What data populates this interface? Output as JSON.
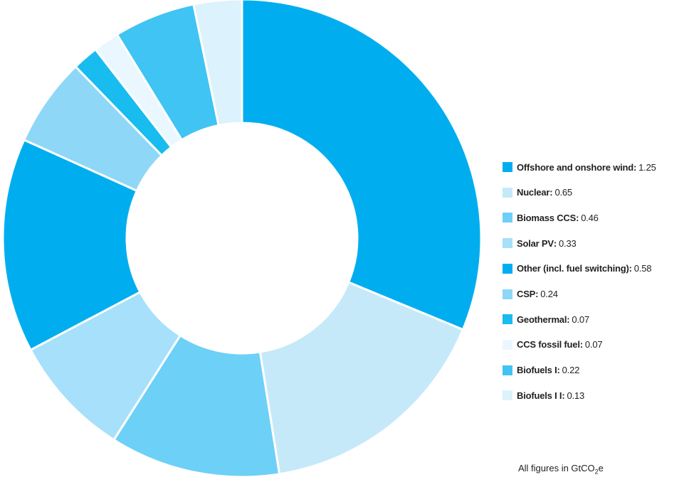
{
  "chart_data": {
    "type": "pie",
    "donut": true,
    "start_angle": 0,
    "direction": "clockwise",
    "series": [
      {
        "name": "Offshore and onshore wind",
        "value": 1.25,
        "color": "#00AEEF"
      },
      {
        "name": "Nuclear",
        "value": 0.65,
        "color": "#C6E9FA"
      },
      {
        "name": "Biomass CCS",
        "value": 0.46,
        "color": "#6DD0F7"
      },
      {
        "name": "Solar PV",
        "value": 0.33,
        "color": "#A6E0FA"
      },
      {
        "name": "Other (incl. fuel switching)",
        "value": 0.58,
        "color": "#00AEEF"
      },
      {
        "name": "CSP",
        "value": 0.24,
        "color": "#8FD7F7"
      },
      {
        "name": "Geothermal",
        "value": 0.07,
        "color": "#18BCEF"
      },
      {
        "name": "CCS fossil fuel",
        "value": 0.07,
        "color": "#EAF7FE"
      },
      {
        "name": "Biofuels I",
        "value": 0.22,
        "color": "#40C4F3"
      },
      {
        "name": "Biofuels I I",
        "value": 0.13,
        "color": "#DCF2FC"
      }
    ],
    "legend_position": "right",
    "footnote": {
      "prefix": "All figures in GtCO",
      "subscript": "2",
      "suffix": "e"
    }
  }
}
